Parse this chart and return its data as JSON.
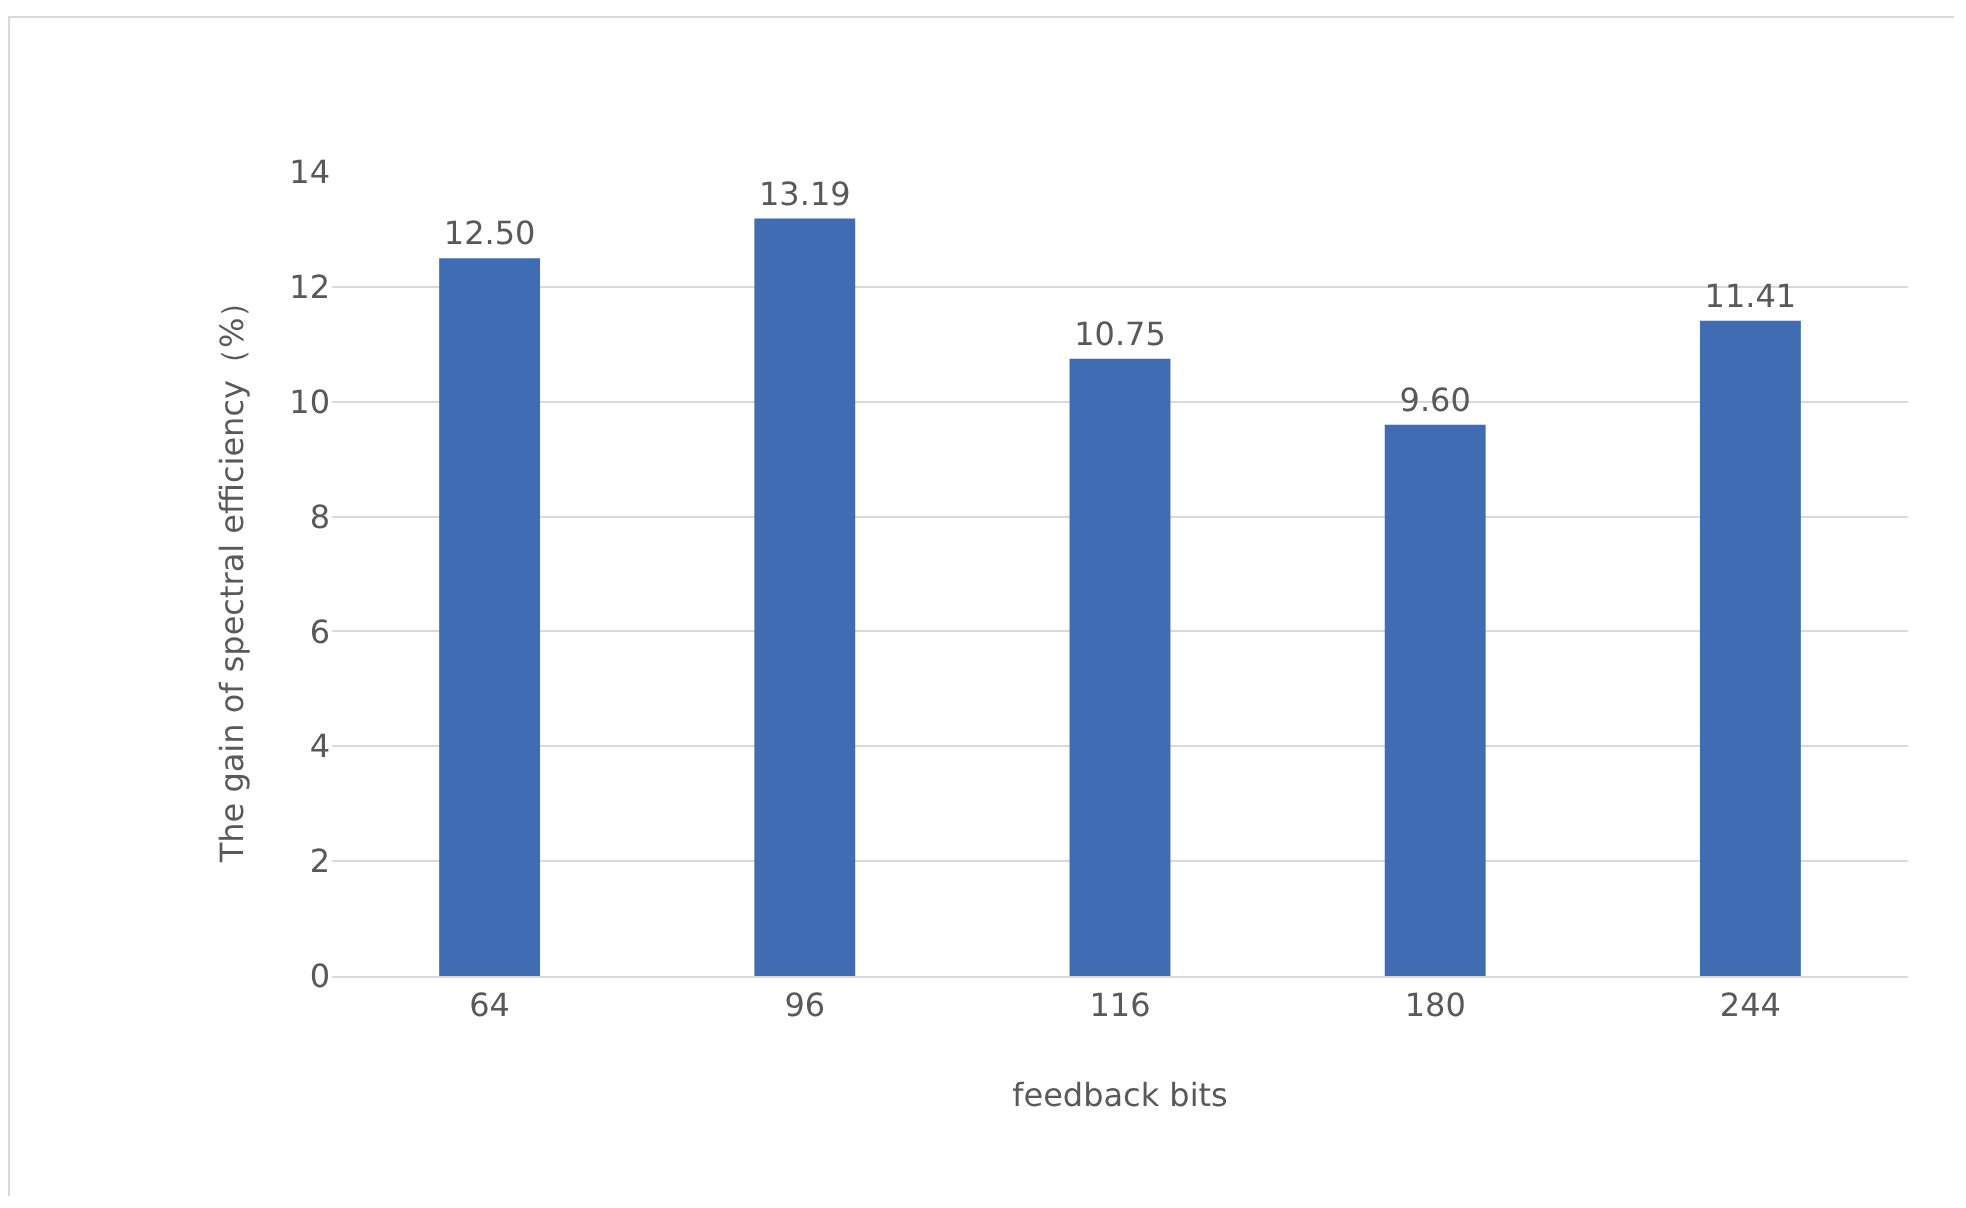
{
  "chart_data": {
    "type": "bar",
    "xlabel": "feedback bits",
    "ylabel": "The gain of spectral efficiency（%）",
    "categories": [
      "64",
      "96",
      "116",
      "180",
      "244"
    ],
    "values": [
      12.5,
      13.19,
      10.75,
      9.6,
      11.41
    ],
    "value_labels": [
      "12.50",
      "13.19",
      "10.75",
      "9.60",
      "11.41"
    ],
    "color": "#3f6cb3",
    "ylim": [
      0,
      14
    ],
    "yticks": [
      0,
      2,
      4,
      6,
      8,
      10,
      12,
      14
    ],
    "grid": "y",
    "legend": false
  }
}
